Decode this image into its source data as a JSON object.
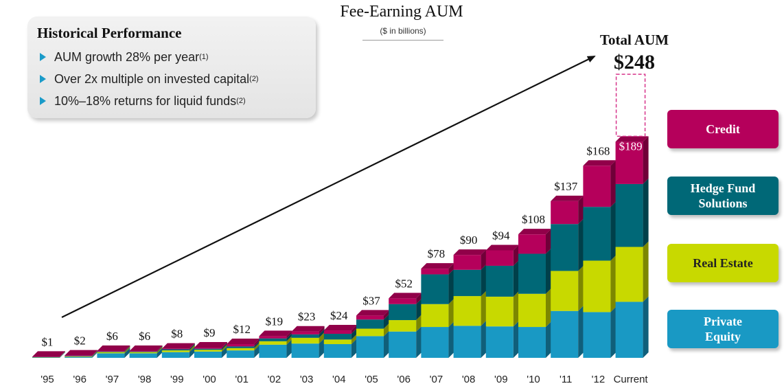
{
  "header": {
    "title": "Fee-Earning AUM",
    "subtitle": "($ in billions)"
  },
  "performance": {
    "title": "Historical Performance",
    "items": [
      {
        "text": "AUM growth 28% per year",
        "note": "(1)"
      },
      {
        "text": "Over 2x multiple on invested capital",
        "note": "(2)"
      },
      {
        "text": "10%–18% returns for liquid funds",
        "note": "(2)"
      }
    ]
  },
  "total": {
    "label": "Total AUM",
    "value": "$248"
  },
  "legend": {
    "items": [
      {
        "label": "Credit",
        "color": "#b5005b",
        "text_color": "#ffffff"
      },
      {
        "label": "Hedge Fund Solutions",
        "color": "#006877",
        "text_color": "#ffffff"
      },
      {
        "label": "Real Estate",
        "color": "#c8d900",
        "text_color": "#222222"
      },
      {
        "label": "Private Equity",
        "color": "#1999c4",
        "text_color": "#ffffff"
      }
    ]
  },
  "chart_data": {
    "type": "bar",
    "stacked": true,
    "categories": [
      "'95",
      "'96",
      "'97",
      "'98",
      "'99",
      "'00",
      "'01",
      "'02",
      "'03",
      "'04",
      "'05",
      "'06",
      "'07",
      "'08",
      "'09",
      "'10",
      "'11",
      "'12",
      "Current"
    ],
    "totals": [
      1,
      2,
      6,
      6,
      8,
      9,
      12,
      19,
      23,
      24,
      37,
      52,
      78,
      90,
      94,
      108,
      137,
      168,
      189
    ],
    "total_labels": [
      "$1",
      "$2",
      "$6",
      "$6",
      "$8",
      "$9",
      "$12",
      "$19",
      "$23",
      "$24",
      "$37",
      "$52",
      "$78",
      "$90",
      "$94",
      "$108",
      "$137",
      "$168",
      "$189"
    ],
    "series": [
      {
        "name": "Private Equity",
        "color": "#1999c4",
        "values": [
          0.4,
          0.8,
          4.0,
          4.0,
          5.0,
          5.5,
          6.5,
          11.5,
          12.5,
          12.0,
          19.0,
          23.0,
          27.0,
          28.0,
          27.5,
          27.0,
          41.0,
          40.0,
          49.0
        ]
      },
      {
        "name": "Real Estate",
        "color": "#c8d900",
        "values": [
          0.2,
          0.4,
          1.0,
          1.0,
          1.5,
          1.5,
          2.0,
          3.0,
          5.0,
          4.0,
          6.5,
          10.0,
          20.0,
          26.0,
          26.0,
          29.0,
          35.0,
          45.0,
          48.0
        ]
      },
      {
        "name": "Hedge Fund Solutions",
        "color": "#006877",
        "values": [
          0.2,
          0.4,
          0.5,
          0.5,
          1.0,
          1.0,
          1.5,
          2.5,
          3.0,
          5.0,
          8.0,
          14.0,
          26.0,
          23.0,
          27.0,
          35.0,
          41.0,
          47.0,
          55.0
        ]
      },
      {
        "name": "Credit",
        "color": "#b5005b",
        "values": [
          0.2,
          0.4,
          0.5,
          0.5,
          0.5,
          1.0,
          2.0,
          2.0,
          2.5,
          3.0,
          3.5,
          5.0,
          5.0,
          13.0,
          13.5,
          17.0,
          20.0,
          36.0,
          37.0
        ]
      }
    ],
    "total_aum_value": 248,
    "ylim": [
      0,
      255
    ]
  }
}
